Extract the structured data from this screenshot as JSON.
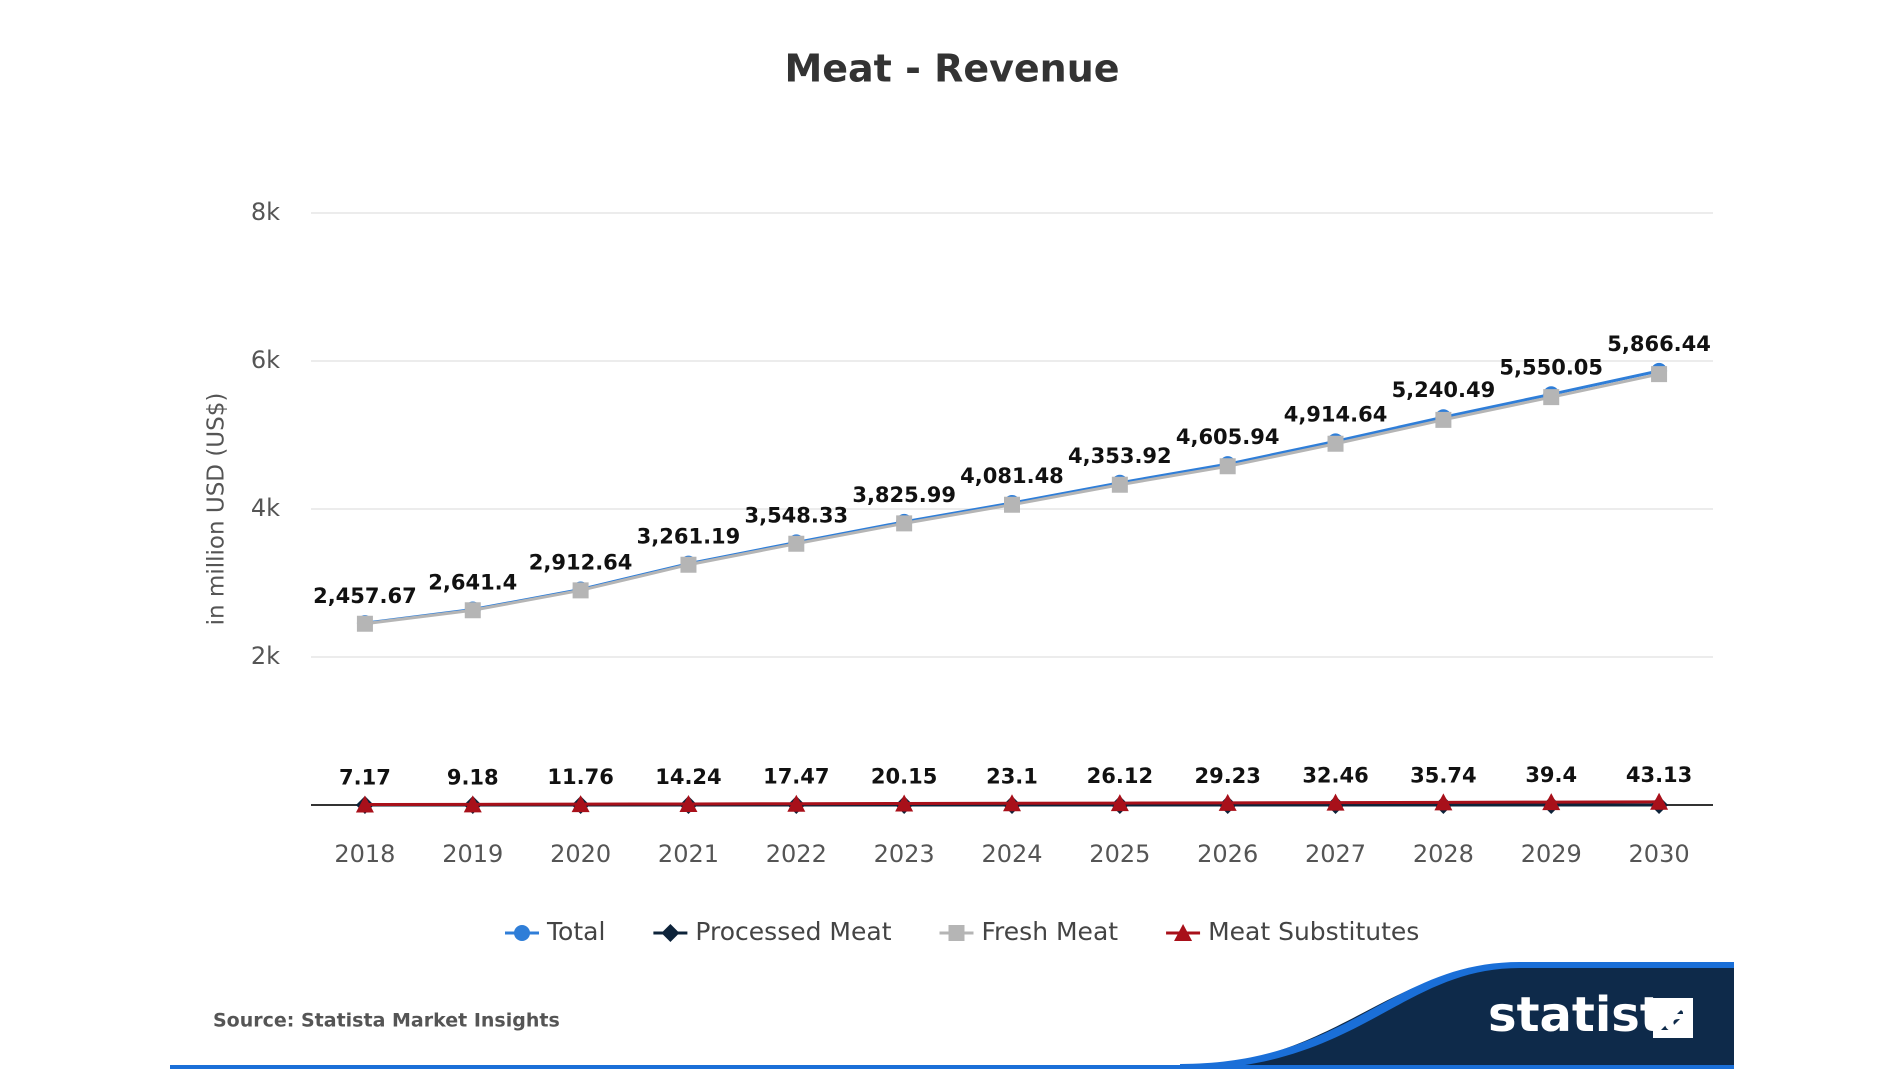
{
  "chart_data": {
    "type": "line",
    "title": "Meat - Revenue",
    "y_label": "in million USD (US$)",
    "categories": [
      "2018",
      "2019",
      "2020",
      "2021",
      "2022",
      "2023",
      "2024",
      "2025",
      "2026",
      "2027",
      "2028",
      "2029",
      "2030"
    ],
    "series": [
      {
        "name": "Total",
        "color": "#2f7ed8",
        "marker": "circle",
        "values": [
          2457.67,
          2641.4,
          2912.64,
          3261.19,
          3548.33,
          3825.99,
          4081.48,
          4353.92,
          4605.94,
          4914.64,
          5240.49,
          5550.05,
          5866.44
        ],
        "value_labels": [
          "2,457.67",
          "2,641.4",
          "2,912.64",
          "3,261.19",
          "3,548.33",
          "3,825.99",
          "4,081.48",
          "4,353.92",
          "4,605.94",
          "4,914.64",
          "5,240.49",
          "5,550.05",
          "5,866.44"
        ]
      },
      {
        "name": "Processed Meat",
        "color": "#0d233a",
        "marker": "diamond",
        "values": [
          0,
          0,
          0,
          0,
          0,
          0,
          0,
          0,
          0,
          0,
          0,
          0,
          0
        ]
      },
      {
        "name": "Fresh Meat",
        "color": "#b5b5b5",
        "marker": "square",
        "values": [
          2450,
          2632,
          2901,
          3247,
          3531,
          3806,
          4058,
          4328,
          4577,
          4882,
          5205,
          5511,
          5823
        ]
      },
      {
        "name": "Meat Substitutes",
        "color": "#a8101a",
        "marker": "triangle",
        "values": [
          7.17,
          9.18,
          11.76,
          14.24,
          17.47,
          20.15,
          23.1,
          26.12,
          29.23,
          32.46,
          35.74,
          39.4,
          43.13
        ]
      }
    ],
    "labeled_series": [
      0,
      3
    ],
    "ylim": [
      0,
      8000
    ],
    "yticks": [
      {
        "value": 2000,
        "label": "2k"
      },
      {
        "value": 4000,
        "label": "4k"
      },
      {
        "value": 6000,
        "label": "6k"
      },
      {
        "value": 8000,
        "label": "8k"
      }
    ],
    "grid": true,
    "source": "Source: Statista Market Insights",
    "logo": "statista"
  }
}
